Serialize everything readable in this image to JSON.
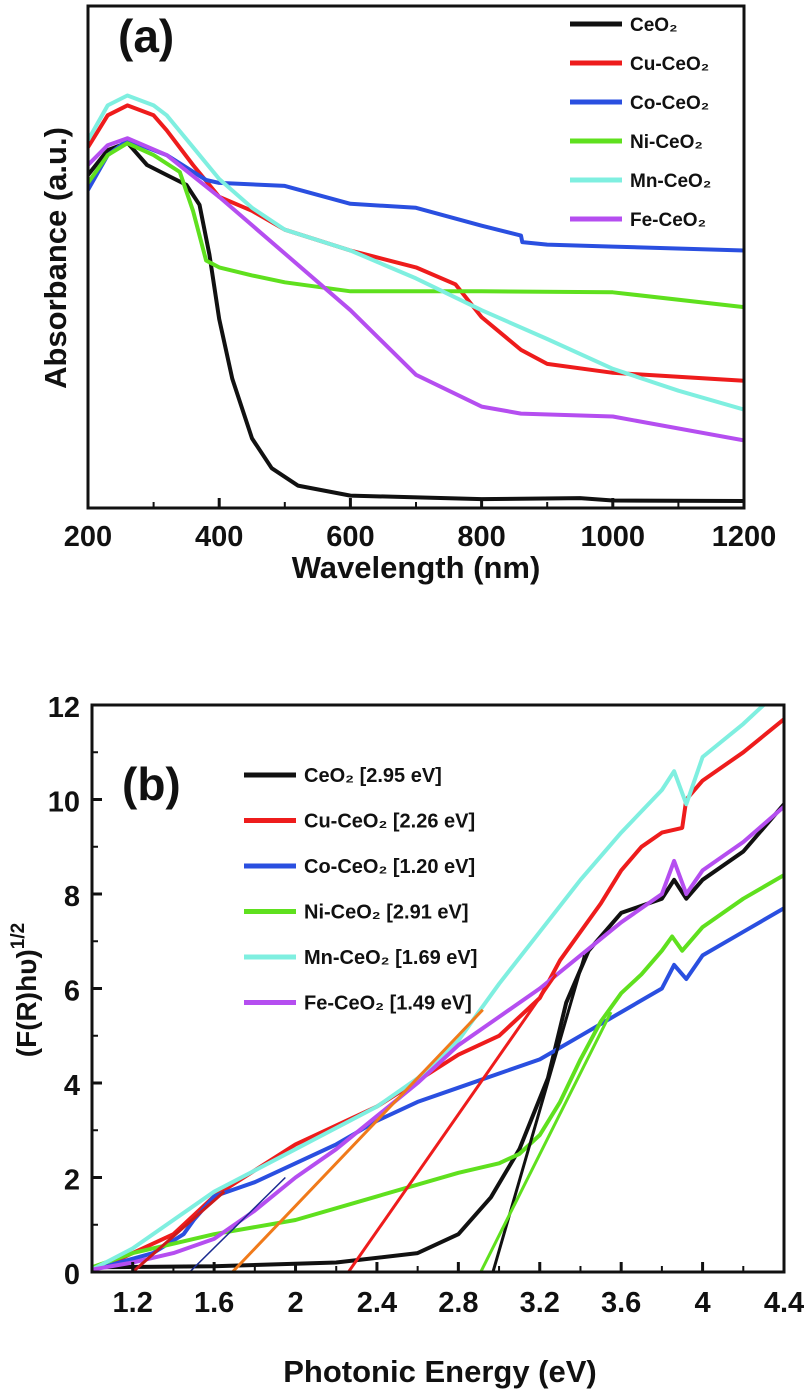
{
  "chart_data": [
    {
      "type": "line",
      "panel_label": "(a)",
      "xlabel": "Wavelength (nm)",
      "ylabel": "Absorbance (a.u.)",
      "xlim": [
        200,
        1200
      ],
      "ylim": [
        -0.1,
        10
      ],
      "xticks": [
        200,
        400,
        600,
        800,
        1000,
        1200
      ],
      "yticks": [],
      "legend_position": "top-right",
      "series": [
        {
          "name": "CeO₂",
          "color": "#111111",
          "points": [
            [
              200,
              6.6
            ],
            [
              230,
              7.1
            ],
            [
              260,
              7.25
            ],
            [
              290,
              6.8
            ],
            [
              320,
              6.6
            ],
            [
              350,
              6.4
            ],
            [
              370,
              6.0
            ],
            [
              385,
              5.0
            ],
            [
              400,
              3.7
            ],
            [
              420,
              2.5
            ],
            [
              450,
              1.3
            ],
            [
              480,
              0.7
            ],
            [
              520,
              0.35
            ],
            [
              600,
              0.15
            ],
            [
              800,
              0.08
            ],
            [
              950,
              0.1
            ],
            [
              1000,
              0.05
            ],
            [
              1200,
              0.04
            ]
          ]
        },
        {
          "name": "Cu-CeO₂",
          "color": "#ee1c1c",
          "points": [
            [
              200,
              7.16
            ],
            [
              230,
              7.8
            ],
            [
              260,
              8.0
            ],
            [
              300,
              7.8
            ],
            [
              320,
              7.5
            ],
            [
              360,
              6.8
            ],
            [
              400,
              6.16
            ],
            [
              450,
              5.88
            ],
            [
              500,
              5.5
            ],
            [
              600,
              5.08
            ],
            [
              700,
              4.74
            ],
            [
              760,
              4.4
            ],
            [
              800,
              3.74
            ],
            [
              860,
              3.08
            ],
            [
              900,
              2.8
            ],
            [
              1000,
              2.62
            ],
            [
              1200,
              2.46
            ]
          ]
        },
        {
          "name": "Co-CeO₂",
          "color": "#2a4fe0",
          "points": [
            [
              200,
              6.3
            ],
            [
              230,
              7.0
            ],
            [
              260,
              7.3
            ],
            [
              320,
              7.0
            ],
            [
              380,
              6.5
            ],
            [
              400,
              6.44
            ],
            [
              500,
              6.38
            ],
            [
              600,
              6.02
            ],
            [
              700,
              5.94
            ],
            [
              800,
              5.58
            ],
            [
              860,
              5.38
            ],
            [
              862,
              5.25
            ],
            [
              900,
              5.2
            ],
            [
              1000,
              5.16
            ],
            [
              1200,
              5.08
            ]
          ]
        },
        {
          "name": "Ni-CeO₂",
          "color": "#5fe01e",
          "points": [
            [
              200,
              6.44
            ],
            [
              230,
              7.0
            ],
            [
              260,
              7.24
            ],
            [
              300,
              7.0
            ],
            [
              340,
              6.66
            ],
            [
              360,
              5.88
            ],
            [
              380,
              4.88
            ],
            [
              400,
              4.74
            ],
            [
              450,
              4.58
            ],
            [
              500,
              4.44
            ],
            [
              600,
              4.26
            ],
            [
              700,
              4.26
            ],
            [
              800,
              4.26
            ],
            [
              1000,
              4.24
            ],
            [
              1200,
              3.94
            ]
          ]
        },
        {
          "name": "Mn-CeO₂",
          "color": "#7fefe0",
          "points": [
            [
              200,
              7.3
            ],
            [
              230,
              8.0
            ],
            [
              260,
              8.2
            ],
            [
              300,
              8.0
            ],
            [
              320,
              7.8
            ],
            [
              360,
              7.16
            ],
            [
              400,
              6.52
            ],
            [
              450,
              5.94
            ],
            [
              500,
              5.5
            ],
            [
              600,
              5.08
            ],
            [
              700,
              4.52
            ],
            [
              800,
              3.88
            ],
            [
              900,
              3.3
            ],
            [
              1000,
              2.7
            ],
            [
              1100,
              2.26
            ],
            [
              1200,
              1.88
            ]
          ]
        },
        {
          "name": "Fe-CeO₂",
          "color": "#b54ef0",
          "points": [
            [
              200,
              6.8
            ],
            [
              230,
              7.2
            ],
            [
              260,
              7.34
            ],
            [
              320,
              7.0
            ],
            [
              400,
              6.16
            ],
            [
              500,
              5.02
            ],
            [
              600,
              3.88
            ],
            [
              700,
              2.58
            ],
            [
              800,
              1.94
            ],
            [
              860,
              1.8
            ],
            [
              1000,
              1.74
            ],
            [
              1200,
              1.26
            ]
          ]
        }
      ]
    },
    {
      "type": "line",
      "panel_label": "(b)",
      "xlabel": "Photonic Energy (eV)",
      "ylabel": "(F(R)hυ)",
      "ylabel_sup": "1/2",
      "xlim": [
        1.0,
        4.4
      ],
      "ylim": [
        0,
        12
      ],
      "xticks": [
        1.2,
        1.6,
        2.0,
        2.4,
        2.8,
        3.2,
        3.6,
        4.0,
        4.4
      ],
      "yticks": [
        0,
        2,
        4,
        6,
        8,
        10,
        12
      ],
      "legend_position": "top-left",
      "series": [
        {
          "name": "CeO₂ [2.95 eV]",
          "color": "#111111",
          "points": [
            [
              1.0,
              0.1
            ],
            [
              1.6,
              0.12
            ],
            [
              2.2,
              0.2
            ],
            [
              2.6,
              0.4
            ],
            [
              2.8,
              0.8
            ],
            [
              2.96,
              1.58
            ],
            [
              3.1,
              2.6
            ],
            [
              3.24,
              4.1
            ],
            [
              3.33,
              5.7
            ],
            [
              3.44,
              6.8
            ],
            [
              3.6,
              7.6
            ],
            [
              3.8,
              7.9
            ],
            [
              3.86,
              8.3
            ],
            [
              3.92,
              7.9
            ],
            [
              4.0,
              8.3
            ],
            [
              4.2,
              8.9
            ],
            [
              4.4,
              9.9
            ]
          ]
        },
        {
          "name": "Cu-CeO₂ [2.26 eV]",
          "color": "#ee1c1c",
          "points": [
            [
              1.1,
              0.2
            ],
            [
              1.4,
              0.8
            ],
            [
              1.6,
              1.6
            ],
            [
              2.0,
              2.7
            ],
            [
              2.4,
              3.5
            ],
            [
              2.8,
              4.6
            ],
            [
              3.0,
              5.0
            ],
            [
              3.2,
              5.8
            ],
            [
              3.3,
              6.6
            ],
            [
              3.5,
              7.8
            ],
            [
              3.6,
              8.5
            ],
            [
              3.7,
              9.0
            ],
            [
              3.8,
              9.3
            ],
            [
              3.9,
              9.4
            ],
            [
              3.92,
              10.0
            ],
            [
              4.0,
              10.4
            ],
            [
              4.2,
              11.0
            ],
            [
              4.4,
              11.7
            ]
          ]
        },
        {
          "name": "Co-CeO₂ [1.20 eV]",
          "color": "#2a4fe0",
          "points": [
            [
              1.05,
              0.1
            ],
            [
              1.3,
              0.4
            ],
            [
              1.45,
              0.8
            ],
            [
              1.5,
              1.1
            ],
            [
              1.6,
              1.6
            ],
            [
              1.8,
              1.9
            ],
            [
              2.0,
              2.3
            ],
            [
              2.2,
              2.7
            ],
            [
              2.4,
              3.2
            ],
            [
              2.6,
              3.6
            ],
            [
              2.8,
              3.9
            ],
            [
              3.0,
              4.2
            ],
            [
              3.2,
              4.5
            ],
            [
              3.4,
              5.0
            ],
            [
              3.6,
              5.5
            ],
            [
              3.8,
              6.0
            ],
            [
              3.86,
              6.5
            ],
            [
              3.92,
              6.2
            ],
            [
              4.0,
              6.7
            ],
            [
              4.2,
              7.2
            ],
            [
              4.4,
              7.7
            ]
          ]
        },
        {
          "name": "Ni-CeO₂ [2.91 eV]",
          "color": "#5fe01e",
          "points": [
            [
              1.0,
              0.1
            ],
            [
              1.2,
              0.4
            ],
            [
              1.4,
              0.6
            ],
            [
              1.6,
              0.8
            ],
            [
              2.0,
              1.1
            ],
            [
              2.4,
              1.6
            ],
            [
              2.8,
              2.1
            ],
            [
              3.0,
              2.3
            ],
            [
              3.1,
              2.5
            ],
            [
              3.2,
              2.9
            ],
            [
              3.3,
              3.6
            ],
            [
              3.4,
              4.5
            ],
            [
              3.5,
              5.3
            ],
            [
              3.6,
              5.9
            ],
            [
              3.7,
              6.3
            ],
            [
              3.8,
              6.8
            ],
            [
              3.85,
              7.1
            ],
            [
              3.9,
              6.8
            ],
            [
              4.0,
              7.3
            ],
            [
              4.2,
              7.9
            ],
            [
              4.4,
              8.4
            ]
          ]
        },
        {
          "name": "Mn-CeO₂ [1.69 eV]",
          "color": "#7fefe0",
          "points": [
            [
              1.0,
              0.05
            ],
            [
              1.2,
              0.5
            ],
            [
              1.4,
              1.1
            ],
            [
              1.6,
              1.7
            ],
            [
              2.0,
              2.6
            ],
            [
              2.4,
              3.5
            ],
            [
              2.6,
              4.1
            ],
            [
              2.8,
              4.9
            ],
            [
              2.9,
              5.5
            ],
            [
              3.0,
              6.1
            ],
            [
              3.2,
              7.2
            ],
            [
              3.4,
              8.3
            ],
            [
              3.6,
              9.3
            ],
            [
              3.8,
              10.2
            ],
            [
              3.86,
              10.6
            ],
            [
              3.92,
              9.9
            ],
            [
              4.0,
              10.9
            ],
            [
              4.2,
              11.6
            ],
            [
              4.3,
              12.0
            ]
          ]
        },
        {
          "name": "Fe-CeO₂ [1.49 eV]",
          "color": "#b54ef0",
          "points": [
            [
              1.0,
              0.05
            ],
            [
              1.2,
              0.2
            ],
            [
              1.4,
              0.4
            ],
            [
              1.6,
              0.7
            ],
            [
              1.8,
              1.3
            ],
            [
              2.0,
              2.0
            ],
            [
              2.2,
              2.6
            ],
            [
              2.4,
              3.3
            ],
            [
              2.6,
              4.0
            ],
            [
              2.8,
              4.8
            ],
            [
              3.0,
              5.4
            ],
            [
              3.2,
              6.0
            ],
            [
              3.4,
              6.7
            ],
            [
              3.6,
              7.4
            ],
            [
              3.8,
              8.0
            ],
            [
              3.86,
              8.7
            ],
            [
              3.92,
              8.0
            ],
            [
              4.0,
              8.5
            ],
            [
              4.2,
              9.1
            ],
            [
              4.4,
              9.85
            ]
          ]
        }
      ],
      "fit_lines": [
        {
          "color": "#111111",
          "points": [
            [
              2.97,
              0
            ],
            [
              3.42,
              6.7
            ]
          ]
        },
        {
          "color": "#5fe01e",
          "points": [
            [
              2.91,
              0
            ],
            [
              3.55,
              5.5
            ]
          ]
        },
        {
          "color": "#ee1c1c",
          "points": [
            [
              2.26,
              0
            ],
            [
              3.28,
              6.3
            ]
          ]
        },
        {
          "color": "#f07a1a",
          "points": [
            [
              1.69,
              0
            ],
            [
              2.92,
              5.55
            ]
          ]
        },
        {
          "color": "#cc1a1a",
          "points": [
            [
              1.2,
              0
            ],
            [
              1.65,
              1.7
            ]
          ]
        },
        {
          "color": "#1a2a90",
          "points": [
            [
              1.48,
              0
            ],
            [
              1.95,
              2.0
            ]
          ]
        }
      ]
    }
  ]
}
